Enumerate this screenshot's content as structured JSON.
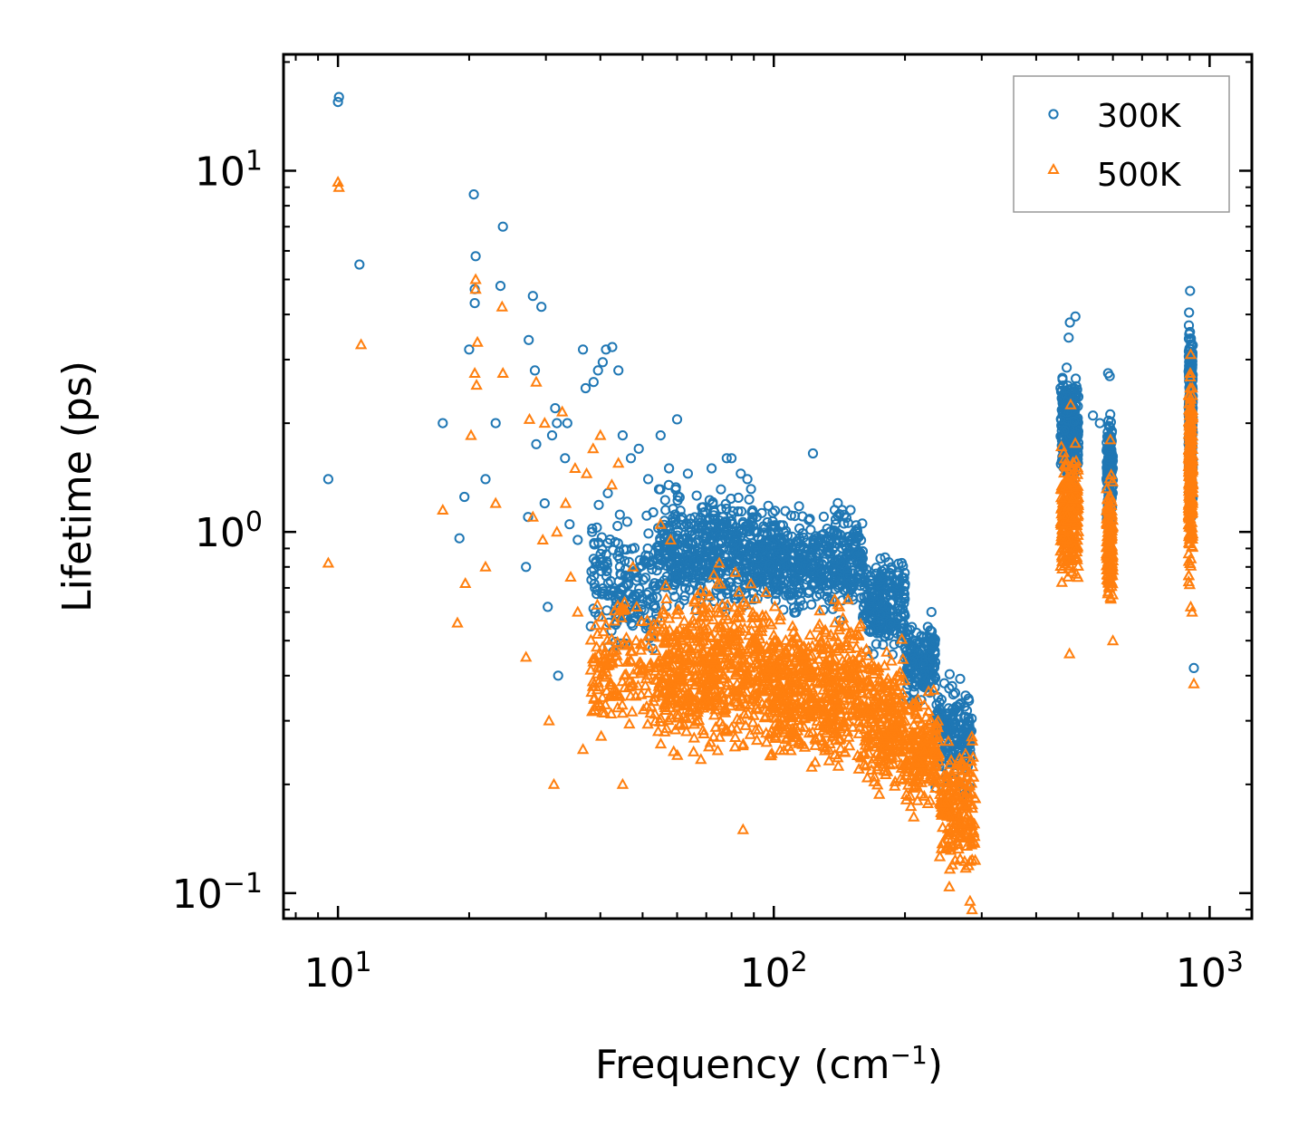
{
  "chart_data": {
    "type": "scatter",
    "xscale": "log",
    "yscale": "log",
    "xlabel": "Frequency (cm",
    "xlabel_sup": "−1",
    "xlabel_tail": ")",
    "ylabel": "Lifetime (ps)",
    "xlim": [
      7.5,
      1250
    ],
    "ylim": [
      0.085,
      21
    ],
    "x_ticks": [
      {
        "base": "10",
        "exp": "1",
        "value": 10
      },
      {
        "base": "10",
        "exp": "2",
        "value": 100
      },
      {
        "base": "10",
        "exp": "3",
        "value": 1000
      }
    ],
    "y_ticks": [
      {
        "base": "10",
        "exp": "−1",
        "value": 0.1
      },
      {
        "base": "10",
        "exp": "0",
        "value": 1
      },
      {
        "base": "10",
        "exp": "1",
        "value": 10
      }
    ],
    "legend_position": "top-right",
    "series": [
      {
        "name": "300K",
        "color": "#1f77b4",
        "marker": "circle-open",
        "points": [
          [
            10.0,
            15.5
          ],
          [
            10.05,
            16.0
          ],
          [
            11.2,
            5.5
          ],
          [
            9.5,
            1.4
          ],
          [
            17.4,
            2.0
          ],
          [
            19.0,
            0.96
          ],
          [
            19.5,
            1.25
          ],
          [
            20.0,
            3.2
          ],
          [
            20.5,
            8.6
          ],
          [
            20.7,
            5.8
          ],
          [
            20.6,
            4.7
          ],
          [
            20.6,
            4.3
          ],
          [
            21.8,
            1.4
          ],
          [
            23.0,
            2.0
          ],
          [
            23.9,
            7.0
          ],
          [
            23.6,
            4.8
          ],
          [
            27.0,
            0.8
          ],
          [
            27.3,
            1.1
          ],
          [
            27.4,
            3.4
          ],
          [
            28.0,
            4.5
          ],
          [
            28.3,
            2.8
          ],
          [
            28.5,
            1.75
          ],
          [
            29.3,
            4.2
          ],
          [
            29.8,
            1.2
          ],
          [
            30.3,
            0.62
          ],
          [
            31.0,
            1.85
          ],
          [
            31.5,
            2.2
          ],
          [
            31.8,
            2.0
          ],
          [
            32.0,
            0.4
          ],
          [
            33.2,
            1.6
          ],
          [
            33.6,
            2.0
          ],
          [
            34.0,
            1.05
          ],
          [
            35.5,
            0.95
          ],
          [
            36.5,
            3.2
          ],
          [
            37.0,
            2.5
          ],
          [
            38.6,
            2.6
          ],
          [
            38.3,
            1.0
          ],
          [
            39.5,
            2.8
          ],
          [
            40.5,
            2.95
          ],
          [
            41.2,
            3.2
          ],
          [
            41.6,
            1.28
          ],
          [
            42.6,
            3.25
          ],
          [
            44.0,
            2.8
          ],
          [
            45.0,
            1.85
          ],
          [
            47.0,
            1.6
          ],
          [
            49.0,
            1.7
          ],
          [
            51.5,
            1.4
          ],
          [
            55.0,
            1.85
          ],
          [
            57.5,
            1.5
          ],
          [
            60.0,
            2.05
          ],
          [
            63.5,
            1.45
          ],
          [
            72.0,
            1.5
          ],
          [
            78.0,
            1.6
          ],
          [
            80.0,
            1.6
          ],
          [
            84.0,
            1.45
          ],
          [
            87.0,
            1.4
          ],
          [
            123.0,
            1.65
          ],
          [
            138.0,
            1.15
          ],
          [
            143.5,
            1.15
          ],
          [
            150.0,
            1.15
          ],
          [
            180.0,
            0.85
          ],
          [
            230.0,
            0.6
          ],
          [
            282.0,
            0.25
          ],
          [
            920.0,
            0.42
          ],
          [
            902.0,
            4.65
          ],
          [
            492.0,
            3.95
          ],
          [
            478.0,
            3.8
          ],
          [
            475.0,
            3.45
          ],
          [
            470.0,
            2.85
          ],
          [
            585.0,
            2.75
          ],
          [
            590.0,
            2.7
          ],
          [
            560.0,
            2.0
          ],
          [
            540.0,
            2.1
          ],
          [
            455.0,
            2.5
          ]
        ],
        "clusters": [
          [
            38,
            54,
            0.4,
            1.3,
            180
          ],
          [
            54,
            90,
            0.55,
            1.45,
            460
          ],
          [
            90,
            160,
            0.55,
            1.25,
            520
          ],
          [
            160,
            200,
            0.42,
            0.95,
            220
          ],
          [
            200,
            235,
            0.32,
            0.6,
            160
          ],
          [
            235,
            285,
            0.18,
            0.42,
            180
          ],
          [
            455,
            500,
            1.2,
            3.0,
            260
          ],
          [
            580,
            600,
            0.85,
            2.4,
            150
          ],
          [
            895,
            915,
            1.0,
            4.4,
            280
          ]
        ]
      },
      {
        "name": "500K",
        "color": "#ff7f0e",
        "marker": "triangle-open",
        "points": [
          [
            10.0,
            9.3
          ],
          [
            10.05,
            9.0
          ],
          [
            11.3,
            3.3
          ],
          [
            9.5,
            0.82
          ],
          [
            17.4,
            1.15
          ],
          [
            18.8,
            0.56
          ],
          [
            19.6,
            0.72
          ],
          [
            20.2,
            1.85
          ],
          [
            20.7,
            5.0
          ],
          [
            20.7,
            4.7
          ],
          [
            20.9,
            3.35
          ],
          [
            20.6,
            2.75
          ],
          [
            20.8,
            2.55
          ],
          [
            21.8,
            0.8
          ],
          [
            23.0,
            1.2
          ],
          [
            23.8,
            4.2
          ],
          [
            23.9,
            2.75
          ],
          [
            27.0,
            0.45
          ],
          [
            27.5,
            2.05
          ],
          [
            28.0,
            1.1
          ],
          [
            28.5,
            2.6
          ],
          [
            29.5,
            0.95
          ],
          [
            29.8,
            2.0
          ],
          [
            30.5,
            0.3
          ],
          [
            31.3,
            0.2
          ],
          [
            31.8,
            1.0
          ],
          [
            32.7,
            2.15
          ],
          [
            33.3,
            1.2
          ],
          [
            34.2,
            0.75
          ],
          [
            35.0,
            1.5
          ],
          [
            35.5,
            0.6
          ],
          [
            36.5,
            0.25
          ],
          [
            37.2,
            1.45
          ],
          [
            38.5,
            1.7
          ],
          [
            40.0,
            1.85
          ],
          [
            42.5,
            1.35
          ],
          [
            44.0,
            1.55
          ],
          [
            45.0,
            0.2
          ],
          [
            47.5,
            0.8
          ],
          [
            55.0,
            1.05
          ],
          [
            58.0,
            0.95
          ],
          [
            75.0,
            0.82
          ],
          [
            85.0,
            0.15
          ],
          [
            96.0,
            0.68
          ],
          [
            138.0,
            0.65
          ],
          [
            148.0,
            0.65
          ],
          [
            920.0,
            0.38
          ],
          [
            905.0,
            3.1
          ],
          [
            480.0,
            2.25
          ],
          [
            477.0,
            0.46
          ],
          [
            592.0,
            1.8
          ],
          [
            600.0,
            0.5
          ],
          [
            905.0,
            0.62
          ],
          [
            912.0,
            0.6
          ],
          [
            285.0,
            0.09
          ],
          [
            282.0,
            0.095
          ]
        ],
        "clusters": [
          [
            38,
            55,
            0.24,
            0.75,
            170
          ],
          [
            55,
            95,
            0.2,
            0.85,
            560
          ],
          [
            95,
            160,
            0.2,
            0.7,
            560
          ],
          [
            160,
            200,
            0.17,
            0.55,
            260
          ],
          [
            200,
            240,
            0.15,
            0.4,
            180
          ],
          [
            240,
            290,
            0.1,
            0.3,
            200
          ],
          [
            455,
            500,
            0.65,
            1.9,
            260
          ],
          [
            580,
            600,
            0.55,
            1.6,
            150
          ],
          [
            895,
            915,
            0.62,
            3.0,
            280
          ]
        ]
      }
    ]
  }
}
